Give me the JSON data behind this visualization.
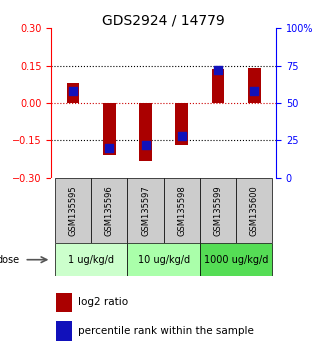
{
  "title": "GDS2924 / 14779",
  "samples": [
    "GSM135595",
    "GSM135596",
    "GSM135597",
    "GSM135598",
    "GSM135599",
    "GSM135600"
  ],
  "log2_ratio": [
    0.08,
    -0.21,
    -0.235,
    -0.17,
    0.135,
    0.14
  ],
  "percentile_rank": [
    58,
    20,
    22,
    28,
    72,
    58
  ],
  "bar_color": "#aa0000",
  "dot_color": "#1111bb",
  "ylim_left": [
    -0.3,
    0.3
  ],
  "ylim_right": [
    0,
    100
  ],
  "yticks_left": [
    -0.3,
    -0.15,
    0,
    0.15,
    0.3
  ],
  "yticks_right": [
    0,
    25,
    50,
    75,
    100
  ],
  "ytick_labels_right": [
    "0",
    "25",
    "50",
    "75",
    "100%"
  ],
  "dose_groups": [
    {
      "label": "1 ug/kg/d",
      "color": "#ccffcc",
      "start": 0,
      "end": 1
    },
    {
      "label": "10 ug/kg/d",
      "color": "#aaffaa",
      "start": 2,
      "end": 3
    },
    {
      "label": "1000 ug/kg/d",
      "color": "#55dd55",
      "start": 4,
      "end": 5
    }
  ],
  "bar_width": 0.35,
  "dot_size": 30,
  "zero_line_color": "#cc0000",
  "label_log2": "log2 ratio",
  "label_percentile": "percentile rank within the sample",
  "dose_label": "dose",
  "sample_bg_color": "#cccccc",
  "title_fontsize": 10,
  "tick_fontsize": 7,
  "legend_fontsize": 7.5
}
